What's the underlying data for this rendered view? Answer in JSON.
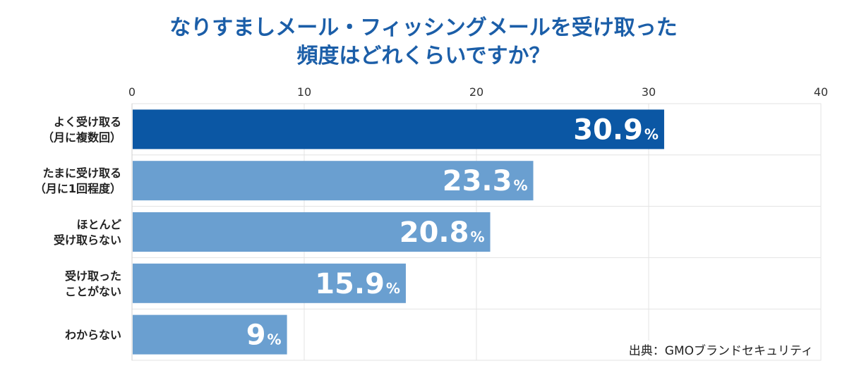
{
  "title": {
    "line1": "なりすましメール・フィッシングメールを受け取った",
    "line2": "頻度はどれくらいですか？"
  },
  "source": "出典：GMOブランドセキュリティ",
  "colors": {
    "title": "#1b5ea8",
    "highlight_bar": "#0b57a4",
    "bar": "#6a9fd0",
    "grid": "#e3e3e3"
  },
  "chart_data": {
    "type": "bar",
    "orientation": "horizontal",
    "categories": [
      [
        "よく受け取る",
        "（月に複数回）"
      ],
      [
        "たまに受け取る",
        "（月に1回程度）"
      ],
      [
        "ほとんど",
        "受け取らない"
      ],
      [
        "受け取った",
        "ことがない"
      ],
      [
        "わからない"
      ]
    ],
    "values": [
      30.9,
      23.3,
      20.8,
      15.9,
      9
    ],
    "value_labels": [
      "30.9",
      "23.3",
      "20.8",
      "15.9",
      "9"
    ],
    "unit": "%",
    "xlim": [
      0,
      40
    ],
    "xticks": [
      "0",
      "10",
      "20",
      "30",
      "40"
    ],
    "xtick_values": [
      0,
      10,
      20,
      30,
      40
    ],
    "axis_position": "top",
    "grid": true,
    "highlight_index": 0
  }
}
